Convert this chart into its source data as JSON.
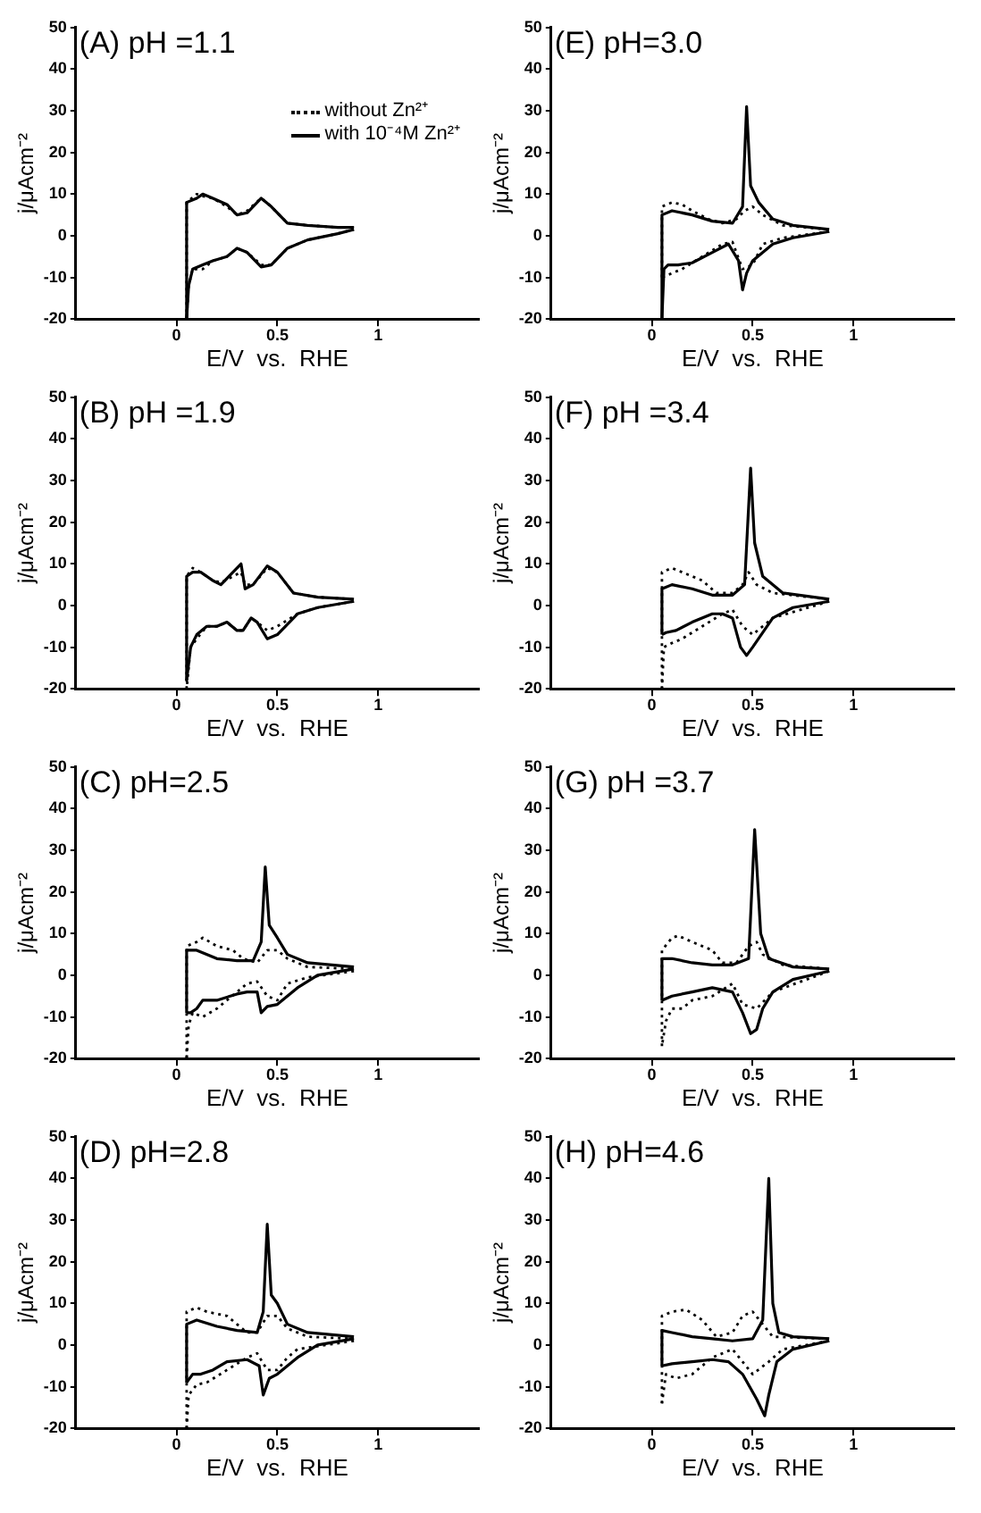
{
  "chart_data": [
    {
      "type": "line",
      "title": "(A) pH =1.1",
      "xlabel": "E/V  vs.  RHE",
      "ylabel": "j/μAcm⁻²",
      "xlim": [
        -0.5,
        1.5
      ],
      "xticks": [
        0,
        0.5,
        1
      ],
      "ylim": [
        -20,
        50
      ],
      "yticks": [
        -20,
        -10,
        0,
        10,
        20,
        30,
        40,
        50
      ],
      "grid": false,
      "legend": "top right",
      "series": [
        {
          "name": "without Zn²⁺",
          "color": "#000000",
          "line_style": "dotted",
          "x": [
            0.05,
            0.05,
            0.1,
            0.13,
            0.18,
            0.25,
            0.3,
            0.35,
            0.42,
            0.47,
            0.55,
            0.65,
            0.8,
            0.88
          ],
          "values": [
            -20,
            8,
            10,
            9.5,
            9,
            7,
            5,
            6,
            9,
            7,
            3,
            2.5,
            2,
            2
          ]
        },
        {
          "color": "#000000",
          "line_style": "dotted",
          "x": [
            0.88,
            0.8,
            0.65,
            0.55,
            0.47,
            0.42,
            0.35,
            0.3,
            0.25,
            0.18,
            0.13,
            0.08,
            0.06,
            0.05
          ],
          "values": [
            1.5,
            0.5,
            -1,
            -3,
            -7,
            -7,
            -4,
            -3,
            -5,
            -6,
            -8,
            -8,
            -12,
            -20
          ]
        },
        {
          "name": "with 10⁻⁴M Zn²⁺",
          "color": "#000000",
          "line_style": "solid",
          "x": [
            0.05,
            0.05,
            0.1,
            0.13,
            0.18,
            0.25,
            0.3,
            0.35,
            0.42,
            0.47,
            0.55,
            0.65,
            0.8,
            0.88
          ],
          "values": [
            -20,
            8,
            9,
            10,
            9,
            7.5,
            5,
            5.5,
            9,
            7,
            3,
            2.5,
            2,
            2
          ]
        },
        {
          "color": "#000000",
          "line_style": "solid",
          "x": [
            0.88,
            0.8,
            0.65,
            0.55,
            0.47,
            0.42,
            0.35,
            0.3,
            0.25,
            0.18,
            0.13,
            0.08,
            0.06,
            0.05
          ],
          "values": [
            1.5,
            0.5,
            -1,
            -3,
            -7,
            -7.5,
            -4,
            -3,
            -5,
            -6,
            -7,
            -8,
            -12,
            -20
          ]
        }
      ]
    },
    {
      "type": "line",
      "title": "(B) pH =1.9",
      "xlabel": "E/V  vs.  RHE",
      "ylabel": "j/μAcm⁻²",
      "xlim": [
        -0.5,
        1.5
      ],
      "xticks": [
        0,
        0.5,
        1
      ],
      "ylim": [
        -20,
        50
      ],
      "yticks": [
        -20,
        -10,
        0,
        10,
        20,
        30,
        40,
        50
      ],
      "grid": false,
      "series": [
        {
          "color": "#000000",
          "line_style": "dotted",
          "x": [
            0.05,
            0.05,
            0.08,
            0.12,
            0.18,
            0.22,
            0.28,
            0.32,
            0.34,
            0.38,
            0.45,
            0.5,
            0.58,
            0.7,
            0.88
          ],
          "values": [
            -20,
            7,
            9,
            8,
            6,
            5.5,
            7,
            8,
            5,
            5,
            9,
            8,
            3,
            2,
            1.5
          ]
        },
        {
          "color": "#000000",
          "line_style": "dotted",
          "x": [
            0.88,
            0.7,
            0.6,
            0.5,
            0.45,
            0.4,
            0.37,
            0.33,
            0.3,
            0.25,
            0.2,
            0.15,
            0.1,
            0.07,
            0.05
          ],
          "values": [
            1,
            -0.5,
            -2,
            -5,
            -6,
            -4,
            -3,
            -6,
            -6,
            -4,
            -5,
            -5,
            -8,
            -10,
            -20
          ]
        },
        {
          "color": "#000000",
          "line_style": "solid",
          "x": [
            0.05,
            0.05,
            0.08,
            0.12,
            0.18,
            0.22,
            0.28,
            0.32,
            0.34,
            0.38,
            0.45,
            0.5,
            0.58,
            0.7,
            0.88
          ],
          "values": [
            -18,
            7,
            8,
            8,
            6,
            5,
            8,
            10,
            4,
            5,
            9.5,
            8,
            3,
            2,
            1.5
          ]
        },
        {
          "color": "#000000",
          "line_style": "solid",
          "x": [
            0.88,
            0.7,
            0.6,
            0.5,
            0.45,
            0.4,
            0.37,
            0.33,
            0.3,
            0.25,
            0.2,
            0.15,
            0.1,
            0.07,
            0.05
          ],
          "values": [
            1,
            -0.5,
            -2,
            -7,
            -8,
            -4,
            -3,
            -6,
            -6,
            -4,
            -5,
            -5,
            -7,
            -10,
            -18
          ]
        }
      ]
    },
    {
      "type": "line",
      "title": "(C) pH=2.5",
      "xlabel": "E/V  vs.  RHE",
      "ylabel": "j/μAcm⁻²",
      "xlim": [
        -0.5,
        1.5
      ],
      "xticks": [
        0,
        0.5,
        1
      ],
      "ylim": [
        -20,
        50
      ],
      "yticks": [
        -20,
        -10,
        0,
        10,
        20,
        30,
        40,
        50
      ],
      "grid": false,
      "series": [
        {
          "color": "#000000",
          "line_style": "dotted",
          "x": [
            0.05,
            0.05,
            0.1,
            0.13,
            0.2,
            0.28,
            0.33,
            0.4,
            0.45,
            0.5,
            0.55,
            0.65,
            0.88
          ],
          "values": [
            -20,
            7,
            8,
            9,
            7,
            6,
            4,
            3,
            6,
            6,
            4,
            2,
            1.5
          ]
        },
        {
          "color": "#000000",
          "line_style": "dotted",
          "x": [
            0.88,
            0.65,
            0.55,
            0.5,
            0.45,
            0.4,
            0.35,
            0.3,
            0.2,
            0.13,
            0.08,
            0.06,
            0.05
          ],
          "values": [
            1,
            -0.5,
            -2,
            -6,
            -5,
            -1.5,
            -2,
            -4,
            -8,
            -10,
            -9,
            -12,
            -20
          ]
        },
        {
          "color": "#000000",
          "line_style": "solid",
          "x": [
            0.05,
            0.05,
            0.1,
            0.2,
            0.3,
            0.38,
            0.42,
            0.44,
            0.46,
            0.5,
            0.55,
            0.65,
            0.88
          ],
          "values": [
            -9,
            6,
            6,
            4,
            3.5,
            3.5,
            8,
            26,
            12,
            9,
            5,
            3,
            2
          ]
        },
        {
          "color": "#000000",
          "line_style": "solid",
          "x": [
            0.88,
            0.7,
            0.6,
            0.5,
            0.45,
            0.42,
            0.4,
            0.35,
            0.3,
            0.2,
            0.13,
            0.1,
            0.07,
            0.05
          ],
          "values": [
            1.5,
            0,
            -3,
            -7,
            -7.5,
            -9,
            -4,
            -4,
            -4.5,
            -6,
            -6,
            -8,
            -9,
            -9
          ]
        }
      ]
    },
    {
      "type": "line",
      "title": "(D) pH=2.8",
      "xlabel": "E/V  vs.  RHE",
      "ylabel": "j/μAcm⁻²",
      "xlim": [
        -0.5,
        1.5
      ],
      "xticks": [
        0,
        0.5,
        1
      ],
      "ylim": [
        -20,
        50
      ],
      "yticks": [
        -20,
        -10,
        0,
        10,
        20,
        30,
        40,
        50
      ],
      "grid": false,
      "series": [
        {
          "color": "#000000",
          "line_style": "dotted",
          "x": [
            0.05,
            0.05,
            0.1,
            0.15,
            0.25,
            0.3,
            0.35,
            0.4,
            0.45,
            0.5,
            0.55,
            0.65,
            0.88
          ],
          "values": [
            -20,
            8,
            9,
            8,
            7,
            5,
            3,
            3,
            7,
            7,
            4,
            2,
            1.5
          ]
        },
        {
          "color": "#000000",
          "line_style": "dotted",
          "x": [
            0.88,
            0.6,
            0.55,
            0.5,
            0.45,
            0.4,
            0.35,
            0.25,
            0.15,
            0.1,
            0.06,
            0.05
          ],
          "values": [
            1,
            -1,
            -3,
            -6,
            -6,
            -2,
            -3,
            -6,
            -9,
            -9.5,
            -12,
            -20
          ]
        },
        {
          "color": "#000000",
          "line_style": "solid",
          "x": [
            0.05,
            0.05,
            0.1,
            0.2,
            0.3,
            0.4,
            0.43,
            0.45,
            0.47,
            0.5,
            0.55,
            0.65,
            0.88
          ],
          "values": [
            -9,
            5,
            6,
            4.5,
            3.5,
            3,
            8,
            29,
            12,
            10,
            5,
            3,
            2
          ]
        },
        {
          "color": "#000000",
          "line_style": "solid",
          "x": [
            0.88,
            0.7,
            0.6,
            0.5,
            0.46,
            0.43,
            0.41,
            0.35,
            0.25,
            0.18,
            0.12,
            0.08,
            0.05
          ],
          "values": [
            1.5,
            0,
            -3,
            -7,
            -8,
            -12,
            -5,
            -3.5,
            -4,
            -6,
            -7,
            -7,
            -9
          ]
        }
      ]
    },
    {
      "type": "line",
      "title": "(E) pH=3.0",
      "xlabel": "E/V  vs.  RHE",
      "ylabel": "j/μAcm⁻²",
      "xlim": [
        -0.5,
        1.5
      ],
      "xticks": [
        0,
        0.5,
        1
      ],
      "ylim": [
        -20,
        50
      ],
      "yticks": [
        -20,
        -10,
        0,
        10,
        20,
        30,
        40,
        50
      ],
      "grid": false,
      "series": [
        {
          "color": "#000000",
          "line_style": "dotted",
          "x": [
            0.05,
            0.05,
            0.1,
            0.15,
            0.2,
            0.28,
            0.35,
            0.42,
            0.46,
            0.5,
            0.55,
            0.65,
            0.88
          ],
          "values": [
            -10,
            7,
            8,
            7.5,
            6,
            4,
            3,
            4,
            6,
            7,
            5,
            2.5,
            1.5
          ]
        },
        {
          "color": "#000000",
          "line_style": "dotted",
          "x": [
            0.88,
            0.65,
            0.55,
            0.5,
            0.45,
            0.4,
            0.35,
            0.25,
            0.15,
            0.1,
            0.05
          ],
          "values": [
            1,
            -0.5,
            -2,
            -7,
            -8,
            -1.5,
            -2,
            -5,
            -8,
            -9,
            -10
          ]
        },
        {
          "color": "#000000",
          "line_style": "solid",
          "x": [
            0.05,
            0.05,
            0.1,
            0.2,
            0.3,
            0.4,
            0.45,
            0.47,
            0.49,
            0.53,
            0.6,
            0.7,
            0.88
          ],
          "values": [
            -20,
            5,
            6,
            5,
            3.5,
            3,
            7,
            31,
            12,
            8,
            4,
            2.5,
            1.5
          ]
        },
        {
          "color": "#000000",
          "line_style": "solid",
          "x": [
            0.88,
            0.7,
            0.6,
            0.5,
            0.47,
            0.45,
            0.43,
            0.38,
            0.3,
            0.2,
            0.13,
            0.08,
            0.06,
            0.05
          ],
          "values": [
            1,
            -0.5,
            -2,
            -6,
            -9,
            -13,
            -6,
            -2,
            -4,
            -6.5,
            -7,
            -7,
            -8,
            -20
          ]
        }
      ]
    },
    {
      "type": "line",
      "title": "(F) pH =3.4",
      "xlabel": "E/V  vs.  RHE",
      "ylabel": "j/μAcm⁻²",
      "xlim": [
        -0.5,
        1.5
      ],
      "xticks": [
        0,
        0.5,
        1
      ],
      "ylim": [
        -20,
        50
      ],
      "yticks": [
        -20,
        -10,
        0,
        10,
        20,
        30,
        40,
        50
      ],
      "grid": false,
      "series": [
        {
          "color": "#000000",
          "line_style": "dotted",
          "x": [
            0.05,
            0.05,
            0.1,
            0.15,
            0.25,
            0.32,
            0.4,
            0.45,
            0.48,
            0.52,
            0.6,
            0.88
          ],
          "values": [
            -20,
            8,
            9,
            8,
            6,
            3,
            3,
            5,
            8,
            5,
            3,
            1.5
          ]
        },
        {
          "color": "#000000",
          "line_style": "dotted",
          "x": [
            0.88,
            0.6,
            0.55,
            0.5,
            0.45,
            0.4,
            0.35,
            0.25,
            0.15,
            0.1,
            0.06,
            0.05
          ],
          "values": [
            1,
            -3,
            -5,
            -7,
            -5,
            -1,
            -2,
            -5,
            -8,
            -9,
            -10,
            -20
          ]
        },
        {
          "color": "#000000",
          "line_style": "solid",
          "x": [
            0.05,
            0.05,
            0.1,
            0.2,
            0.3,
            0.4,
            0.46,
            0.49,
            0.51,
            0.55,
            0.65,
            0.88
          ],
          "values": [
            -7,
            4,
            5,
            4,
            2.5,
            2.5,
            5,
            33,
            15,
            7,
            3,
            1.5
          ]
        },
        {
          "color": "#000000",
          "line_style": "solid",
          "x": [
            0.88,
            0.7,
            0.6,
            0.5,
            0.47,
            0.44,
            0.4,
            0.35,
            0.3,
            0.2,
            0.12,
            0.07,
            0.05
          ],
          "values": [
            1,
            -0.5,
            -3,
            -10,
            -12,
            -10,
            -3,
            -2,
            -2,
            -4,
            -6,
            -6.5,
            -7
          ]
        }
      ]
    },
    {
      "type": "line",
      "title": "(G) pH =3.7",
      "xlabel": "E/V  vs.  RHE",
      "ylabel": "j/μAcm⁻²",
      "xlim": [
        -0.5,
        1.5
      ],
      "xticks": [
        0,
        0.5,
        1
      ],
      "ylim": [
        -20,
        50
      ],
      "yticks": [
        -20,
        -10,
        0,
        10,
        20,
        30,
        40,
        50
      ],
      "grid": false,
      "series": [
        {
          "color": "#000000",
          "line_style": "dotted",
          "x": [
            0.05,
            0.05,
            0.1,
            0.13,
            0.2,
            0.3,
            0.35,
            0.42,
            0.48,
            0.52,
            0.55,
            0.65,
            0.88
          ],
          "values": [
            -17,
            6,
            9,
            9.5,
            8,
            6,
            3,
            3,
            7,
            8,
            5,
            2.5,
            1.5
          ]
        },
        {
          "color": "#000000",
          "line_style": "dotted",
          "x": [
            0.88,
            0.6,
            0.52,
            0.45,
            0.4,
            0.3,
            0.2,
            0.15,
            0.1,
            0.07,
            0.05
          ],
          "values": [
            1,
            -4,
            -8,
            -7,
            -2,
            -5,
            -6,
            -8,
            -8,
            -11,
            -17
          ]
        },
        {
          "color": "#000000",
          "line_style": "solid",
          "x": [
            0.05,
            0.05,
            0.1,
            0.2,
            0.3,
            0.4,
            0.48,
            0.51,
            0.54,
            0.58,
            0.7,
            0.88
          ],
          "values": [
            -6,
            4,
            4,
            3,
            2.5,
            2.5,
            4,
            35,
            10,
            4,
            2,
            1.5
          ]
        },
        {
          "color": "#000000",
          "line_style": "solid",
          "x": [
            0.88,
            0.7,
            0.6,
            0.55,
            0.52,
            0.49,
            0.45,
            0.4,
            0.3,
            0.2,
            0.1,
            0.05
          ],
          "values": [
            1,
            -1,
            -4,
            -8,
            -13,
            -14,
            -9,
            -4,
            -3,
            -4,
            -5,
            -6
          ]
        }
      ]
    },
    {
      "type": "line",
      "title": "(H) pH=4.6",
      "xlabel": "E/V  vs.  RHE",
      "ylabel": "j/μAcm⁻²",
      "xlim": [
        -0.5,
        1.5
      ],
      "xticks": [
        0,
        0.5,
        1
      ],
      "ylim": [
        -20,
        50
      ],
      "yticks": [
        -20,
        -10,
        0,
        10,
        20,
        30,
        40,
        50
      ],
      "grid": false,
      "series": [
        {
          "color": "#000000",
          "line_style": "dotted",
          "x": [
            0.05,
            0.05,
            0.1,
            0.17,
            0.25,
            0.32,
            0.4,
            0.45,
            0.5,
            0.55,
            0.6,
            0.88
          ],
          "values": [
            -14,
            7,
            8,
            8.5,
            6,
            2,
            3,
            7,
            8,
            5,
            2,
            1.5
          ]
        },
        {
          "color": "#000000",
          "line_style": "dotted",
          "x": [
            0.88,
            0.65,
            0.58,
            0.5,
            0.45,
            0.4,
            0.3,
            0.2,
            0.12,
            0.07,
            0.05
          ],
          "values": [
            1,
            -1,
            -4,
            -7,
            -4,
            -1,
            -3,
            -7,
            -8,
            -7,
            -14
          ]
        },
        {
          "color": "#000000",
          "line_style": "solid",
          "x": [
            0.05,
            0.05,
            0.1,
            0.2,
            0.3,
            0.4,
            0.5,
            0.55,
            0.58,
            0.6,
            0.63,
            0.7,
            0.88
          ],
          "values": [
            -5,
            3.5,
            3,
            2,
            1.5,
            1,
            1.5,
            6,
            40,
            10,
            3,
            2,
            1.5
          ]
        },
        {
          "color": "#000000",
          "line_style": "solid",
          "x": [
            0.88,
            0.7,
            0.62,
            0.58,
            0.56,
            0.52,
            0.45,
            0.38,
            0.3,
            0.2,
            0.1,
            0.05
          ],
          "values": [
            1,
            -1,
            -4,
            -12,
            -17,
            -13,
            -7,
            -4,
            -3.5,
            -4,
            -4.5,
            -5
          ]
        }
      ]
    }
  ]
}
